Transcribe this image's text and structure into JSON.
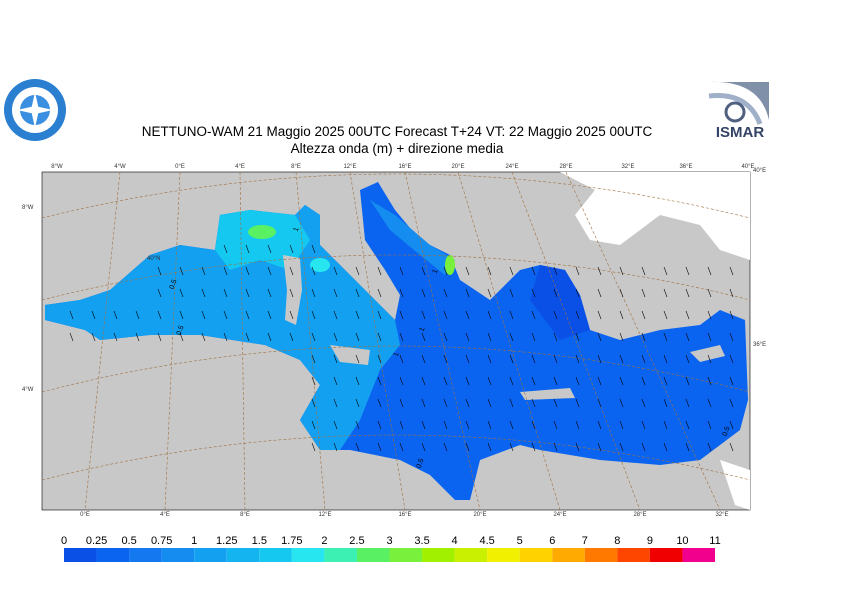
{
  "header": {
    "title": "NETTUNO-WAM  21   Maggio  2025 00UTC Forecast T+24 VT: 22   Maggio  2025 00UTC",
    "subtitle": "Altezza onda (m) + direzione media"
  },
  "logos": {
    "right": "ISMAR"
  },
  "graticule": {
    "top": [
      "8°W",
      "4°W",
      "0°E",
      "4°E",
      "8°E",
      "12°E",
      "16°E",
      "20°E",
      "24°E",
      "28°E",
      "32°E",
      "36°E",
      "40°E"
    ],
    "bottom": [
      "0°E",
      "4°E",
      "8°E",
      "12°E",
      "16°E",
      "20°E",
      "24°E",
      "28°E",
      "32°E"
    ],
    "left": [
      "8°W",
      "4°W"
    ],
    "right": [
      "40°E",
      "36°E"
    ],
    "inner": [
      "40°N"
    ]
  },
  "contour_labels": [
    "0.5",
    "0.5",
    "1",
    "1",
    "1",
    "1",
    "0.5",
    "0.5"
  ],
  "colorbar": {
    "labels": [
      "0",
      "0.25",
      "0.5",
      "0.75",
      "1",
      "1.25",
      "1.5",
      "1.75",
      "2",
      "2.5",
      "3",
      "3.5",
      "4",
      "4.5",
      "5",
      "6",
      "7",
      "8",
      "9",
      "10",
      "11"
    ],
    "colors": [
      "#0a50e6",
      "#0a64f0",
      "#1478f0",
      "#148cf0",
      "#14a0f0",
      "#14b4f0",
      "#14c8f0",
      "#28e6f0",
      "#3cf0b4",
      "#5af064",
      "#78f03c",
      "#a0f000",
      "#c8f000",
      "#f0f000",
      "#ffd200",
      "#ffaa00",
      "#ff7800",
      "#ff4600",
      "#f00000",
      "#f0008c"
    ]
  }
}
